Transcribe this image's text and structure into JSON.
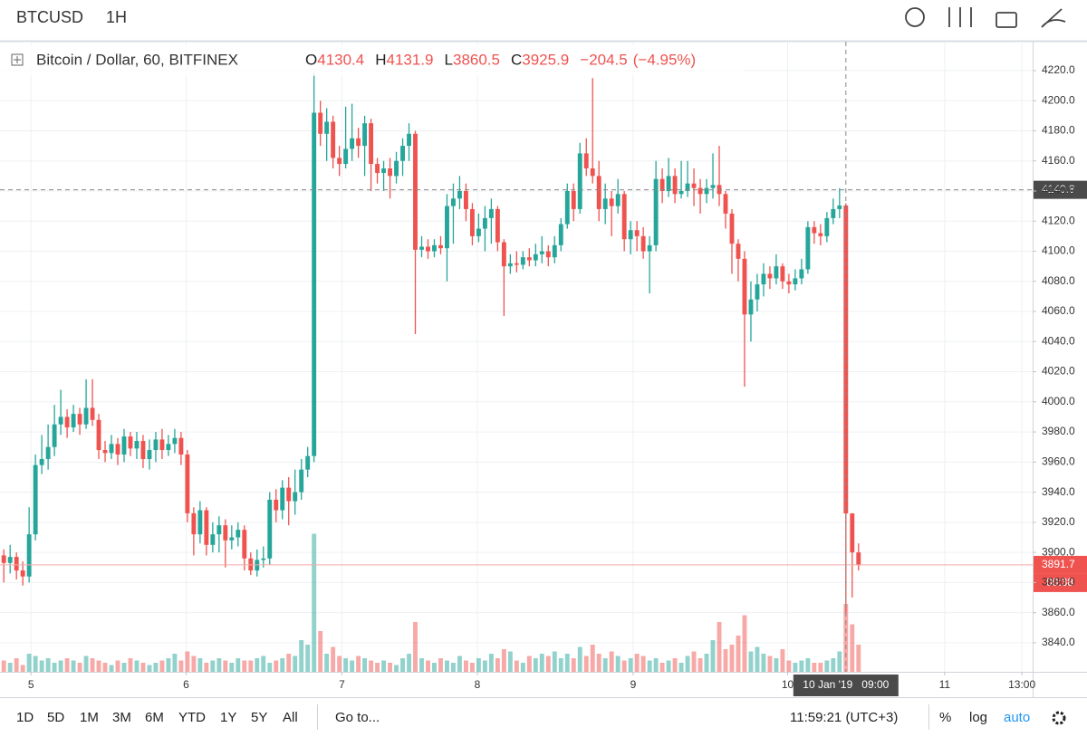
{
  "toolbar": {
    "symbol": "BTCUSD",
    "interval": "1H"
  },
  "bottom_bar": {
    "ranges": [
      "1D",
      "5D",
      "1M",
      "3M",
      "6M",
      "YTD",
      "1Y",
      "5Y",
      "All"
    ],
    "goto": "Go to...",
    "clock": "11:59:21 (UTC+3)",
    "percent": "%",
    "log": "log",
    "auto": "auto"
  },
  "chart_data": {
    "type": "candlestick",
    "title": "Bitcoin / Dollar, 60, BITFINEX",
    "info_labels": [
      "O",
      "H",
      "L",
      "C"
    ],
    "info_values": [
      4130.4,
      4131.9,
      3860.5,
      3925.9
    ],
    "change": {
      "value": -204.5,
      "label": "−204.5"
    },
    "change_pct": {
      "value": -4.95,
      "label": "(−4.95%)"
    },
    "up_color": "#26a69a",
    "down_color": "#ef5350",
    "open": [
      3898,
      3893,
      3897,
      3888,
      3884,
      3912,
      3958,
      3962,
      3970,
      3985,
      3990,
      3983,
      3992,
      3985,
      3996,
      3988,
      3968,
      3966,
      3972,
      3965,
      3977,
      3969,
      3974,
      3962,
      3968,
      3975,
      3968,
      3972,
      3976,
      3965,
      3926,
      3912,
      3928,
      3905,
      3912,
      3918,
      3908,
      3910,
      3915,
      3896,
      3888,
      3895,
      3896,
      3935,
      3928,
      3943,
      3934,
      3940,
      3955,
      3964,
      4192,
      4178,
      4186,
      4162,
      4158,
      4168,
      4175,
      4170,
      4185,
      4158,
      4152,
      4155,
      4150,
      4160,
      4170,
      4178,
      4101,
      4103,
      4100,
      4104,
      4102,
      4130,
      4135,
      4140,
      4128,
      4110,
      4115,
      4122,
      4128,
      4106,
      4090,
      4092,
      4091,
      4096,
      4094,
      4098,
      4100,
      4096,
      4104,
      4118,
      4140,
      4128,
      4165,
      4155,
      4150,
      4128,
      4135,
      4130,
      4138,
      4108,
      4114,
      4110,
      4100,
      4104,
      4148,
      4140,
      4150,
      4138,
      4140,
      4145,
      4142,
      4138,
      4142,
      4144,
      4138,
      4125,
      4105,
      4095,
      4058,
      4068,
      4078,
      4085,
      4082,
      4090,
      4080,
      4078,
      4082,
      4088,
      4116,
      4112,
      4110,
      4122,
      4128,
      4130.4,
      3925.9,
      3900
    ],
    "high": [
      3902,
      3905,
      3900,
      3894,
      3930,
      3965,
      3978,
      3985,
      3998,
      4008,
      3995,
      3998,
      3996,
      4015,
      4015,
      3992,
      3974,
      3978,
      3976,
      3982,
      3980,
      3980,
      3978,
      3975,
      3980,
      3982,
      3978,
      3982,
      3980,
      3968,
      3930,
      3934,
      3930,
      3920,
      3924,
      3922,
      3918,
      3920,
      3918,
      3900,
      3902,
      3904,
      3940,
      3942,
      3948,
      3950,
      3955,
      3962,
      3970,
      4218,
      4200,
      4195,
      4190,
      4170,
      4196,
      4198,
      4182,
      4190,
      4188,
      4162,
      4160,
      4162,
      4166,
      4175,
      4185,
      4180,
      4110,
      4108,
      4108,
      4110,
      4138,
      4145,
      4150,
      4145,
      4132,
      4125,
      4130,
      4135,
      4130,
      4108,
      4098,
      4100,
      4100,
      4102,
      4105,
      4110,
      4104,
      4110,
      4122,
      4145,
      4145,
      4172,
      4175,
      4215,
      4160,
      4145,
      4140,
      4148,
      4140,
      4120,
      4120,
      4116,
      4110,
      4160,
      4155,
      4162,
      4155,
      4160,
      4160,
      4155,
      4148,
      4148,
      4165,
      4170,
      4140,
      4128,
      4108,
      4100,
      4080,
      4085,
      4092,
      4090,
      4098,
      4092,
      4085,
      4088,
      4095,
      4120,
      4120,
      4118,
      4126,
      4135,
      4141.9,
      4131.9,
      3926,
      3906
    ],
    "low": [
      3880,
      3886,
      3882,
      3878,
      3880,
      3908,
      3952,
      3955,
      3964,
      3978,
      3976,
      3980,
      3978,
      3982,
      3984,
      3962,
      3960,
      3962,
      3958,
      3960,
      3964,
      3962,
      3956,
      3955,
      3960,
      3962,
      3964,
      3966,
      3958,
      3920,
      3898,
      3906,
      3898,
      3900,
      3900,
      3890,
      3902,
      3904,
      3888,
      3885,
      3884,
      3890,
      3892,
      3920,
      3922,
      3918,
      3925,
      3935,
      3950,
      3960,
      4170,
      4160,
      4155,
      4150,
      4155,
      4160,
      4162,
      4150,
      4140,
      4145,
      4140,
      4135,
      4145,
      4150,
      4160,
      4045,
      4096,
      4095,
      4096,
      4098,
      4080,
      4105,
      4128,
      4120,
      4104,
      4106,
      4100,
      4105,
      4100,
      4057,
      4085,
      4086,
      4088,
      4090,
      4090,
      4092,
      4090,
      4092,
      4100,
      4115,
      4120,
      4125,
      4150,
      4145,
      4120,
      4118,
      4110,
      4125,
      4100,
      4098,
      4100,
      4095,
      4072,
      4100,
      4132,
      4136,
      4132,
      4135,
      4136,
      4130,
      4125,
      4132,
      4135,
      4130,
      4115,
      4085,
      4080,
      4010,
      4040,
      4060,
      4070,
      4075,
      4078,
      4075,
      4072,
      4074,
      4078,
      4085,
      4105,
      4104,
      4106,
      4118,
      4122,
      3860.5,
      3870,
      3888
    ],
    "close": [
      3893,
      3897,
      3888,
      3884,
      3912,
      3958,
      3962,
      3970,
      3985,
      3990,
      3983,
      3992,
      3985,
      3996,
      3988,
      3968,
      3966,
      3972,
      3965,
      3977,
      3969,
      3974,
      3962,
      3968,
      3975,
      3968,
      3972,
      3976,
      3965,
      3926,
      3912,
      3928,
      3905,
      3912,
      3918,
      3908,
      3910,
      3915,
      3896,
      3888,
      3895,
      3896,
      3935,
      3928,
      3943,
      3934,
      3940,
      3955,
      3964,
      4192,
      4178,
      4186,
      4162,
      4158,
      4168,
      4175,
      4170,
      4185,
      4158,
      4152,
      4155,
      4150,
      4160,
      4170,
      4178,
      4101,
      4103,
      4100,
      4104,
      4102,
      4130,
      4135,
      4140,
      4128,
      4110,
      4115,
      4122,
      4128,
      4106,
      4090,
      4092,
      4091,
      4096,
      4094,
      4098,
      4100,
      4096,
      4104,
      4118,
      4140,
      4128,
      4165,
      4155,
      4150,
      4128,
      4135,
      4130,
      4138,
      4108,
      4114,
      4110,
      4100,
      4104,
      4148,
      4140,
      4150,
      4138,
      4140,
      4145,
      4142,
      4138,
      4142,
      4144,
      4138,
      4125,
      4105,
      4095,
      4058,
      4068,
      4078,
      4085,
      4082,
      4090,
      4080,
      4078,
      4082,
      4088,
      4116,
      4112,
      4110,
      4122,
      4128,
      4130.4,
      3925.9,
      3900,
      3891.7
    ],
    "volume": [
      5,
      4,
      6,
      3,
      8,
      7,
      5,
      6,
      4,
      5,
      6,
      5,
      4,
      7,
      6,
      5,
      4,
      3,
      5,
      4,
      6,
      5,
      4,
      3,
      4,
      5,
      6,
      8,
      5,
      9,
      7,
      6,
      4,
      5,
      6,
      5,
      4,
      6,
      5,
      5,
      6,
      7,
      4,
      5,
      6,
      8,
      7,
      14,
      12,
      61,
      18,
      8,
      11,
      7,
      6,
      5,
      7,
      6,
      5,
      4,
      5,
      4,
      3,
      6,
      8,
      22,
      6,
      5,
      4,
      6,
      5,
      4,
      7,
      5,
      4,
      6,
      5,
      8,
      6,
      10,
      9,
      5,
      4,
      7,
      6,
      8,
      7,
      9,
      6,
      8,
      6,
      11,
      7,
      12,
      8,
      6,
      9,
      7,
      5,
      6,
      8,
      7,
      5,
      6,
      4,
      5,
      6,
      4,
      7,
      9,
      6,
      8,
      14,
      22,
      10,
      12,
      16,
      25,
      9,
      11,
      8,
      7,
      6,
      10,
      5,
      4,
      5,
      6,
      4,
      4,
      5,
      6,
      9,
      30,
      21,
      12
    ],
    "vlim": [
      0,
      100
    ],
    "ylim": [
      3820.7,
      4239.2
    ],
    "yticks": [
      {
        "value": 3840,
        "label": "3840.0"
      },
      {
        "value": 3860,
        "label": "3860.0"
      },
      {
        "value": 3880,
        "label": "3880.0"
      },
      {
        "value": 3900,
        "label": "3900.0"
      },
      {
        "value": 3920,
        "label": "3920.0"
      },
      {
        "value": 3940,
        "label": "3940.0"
      },
      {
        "value": 3960,
        "label": "3960.0"
      },
      {
        "value": 3980,
        "label": "3980.0"
      },
      {
        "value": 4000,
        "label": "4000.0"
      },
      {
        "value": 4020,
        "label": "4020.0"
      },
      {
        "value": 4040,
        "label": "4040.0"
      },
      {
        "value": 4060,
        "label": "4060.0"
      },
      {
        "value": 4080,
        "label": "4080.0"
      },
      {
        "value": 4100,
        "label": "4100.0"
      },
      {
        "value": 4120,
        "label": "4120.0"
      },
      {
        "value": 4140,
        "label": "4140.0"
      },
      {
        "value": 4160,
        "label": "4160.0"
      },
      {
        "value": 4180,
        "label": "4180.0"
      },
      {
        "value": 4200,
        "label": "4200.0"
      },
      {
        "value": 4220,
        "label": "4220.0"
      }
    ],
    "xlim": [
      -0.6,
      162.5
    ],
    "xticks": [
      {
        "value": 4.3,
        "label": "5"
      },
      {
        "value": 28.8,
        "label": "6"
      },
      {
        "value": 53.4,
        "label": "7"
      },
      {
        "value": 74.8,
        "label": "8"
      },
      {
        "value": 99.4,
        "label": "9"
      },
      {
        "value": 123.8,
        "label": "10"
      },
      {
        "value": 148.6,
        "label": "11"
      },
      {
        "value": 160.8,
        "label": "13:00"
      }
    ],
    "grid": true,
    "last_price": {
      "value": 3891.7,
      "label": "3891.7"
    },
    "countdown": "00:38",
    "crosshair": {
      "x": 133,
      "y": {
        "value": 4140.8,
        "label": "4140.8"
      },
      "time_label": "10 Jan '19   09:00"
    }
  }
}
